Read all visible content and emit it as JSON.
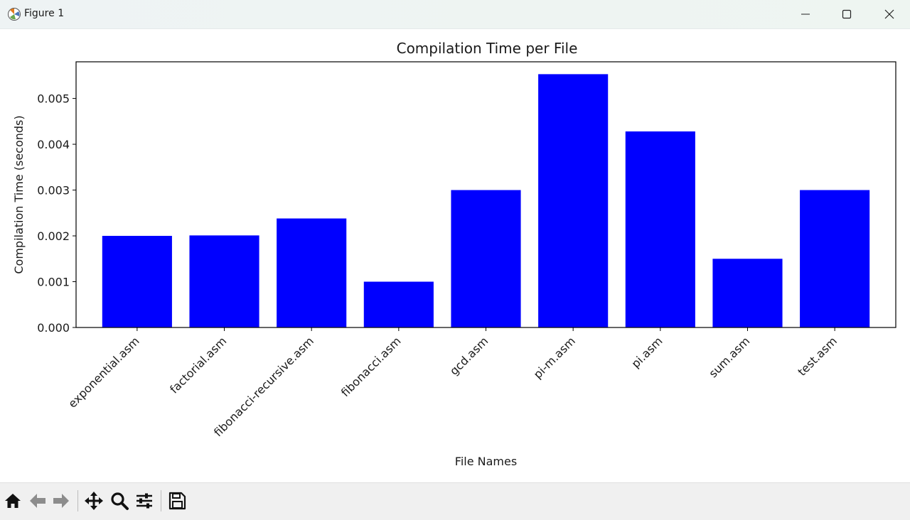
{
  "window": {
    "title": "Figure 1",
    "controls": [
      "minimize-icon",
      "maximize-icon",
      "close-icon"
    ]
  },
  "toolbar": {
    "buttons": [
      {
        "name": "home-icon"
      },
      {
        "name": "back-arrow-icon"
      },
      {
        "name": "forward-arrow-icon"
      },
      {
        "name": "pan-icon"
      },
      {
        "name": "zoom-icon"
      },
      {
        "name": "configure-subplots-icon"
      },
      {
        "name": "save-icon"
      }
    ]
  },
  "colors": {
    "bar": "#0000ff",
    "axes": "#000000",
    "text": "#1a1a1a"
  },
  "chart_data": {
    "type": "bar",
    "title": "Compilation Time per File",
    "xlabel": "File Names",
    "ylabel": "Compilation Time (seconds)",
    "categories": [
      "exponential.asm",
      "factorial.asm",
      "fibonacci-recursive.asm",
      "fibonacci.asm",
      "gcd.asm",
      "pi-m.asm",
      "pi.asm",
      "sum.asm",
      "test.asm"
    ],
    "values": [
      0.002,
      0.00201,
      0.00238,
      0.001,
      0.003,
      0.00553,
      0.00428,
      0.0015,
      0.003
    ],
    "ylim": [
      0,
      0.0058
    ],
    "yticks": [
      0.0,
      0.001,
      0.002,
      0.003,
      0.004,
      0.005
    ],
    "ytick_labels": [
      "0.000",
      "0.001",
      "0.002",
      "0.003",
      "0.004",
      "0.005"
    ],
    "xtick_rotation": 45,
    "grid": false,
    "legend": "none"
  }
}
